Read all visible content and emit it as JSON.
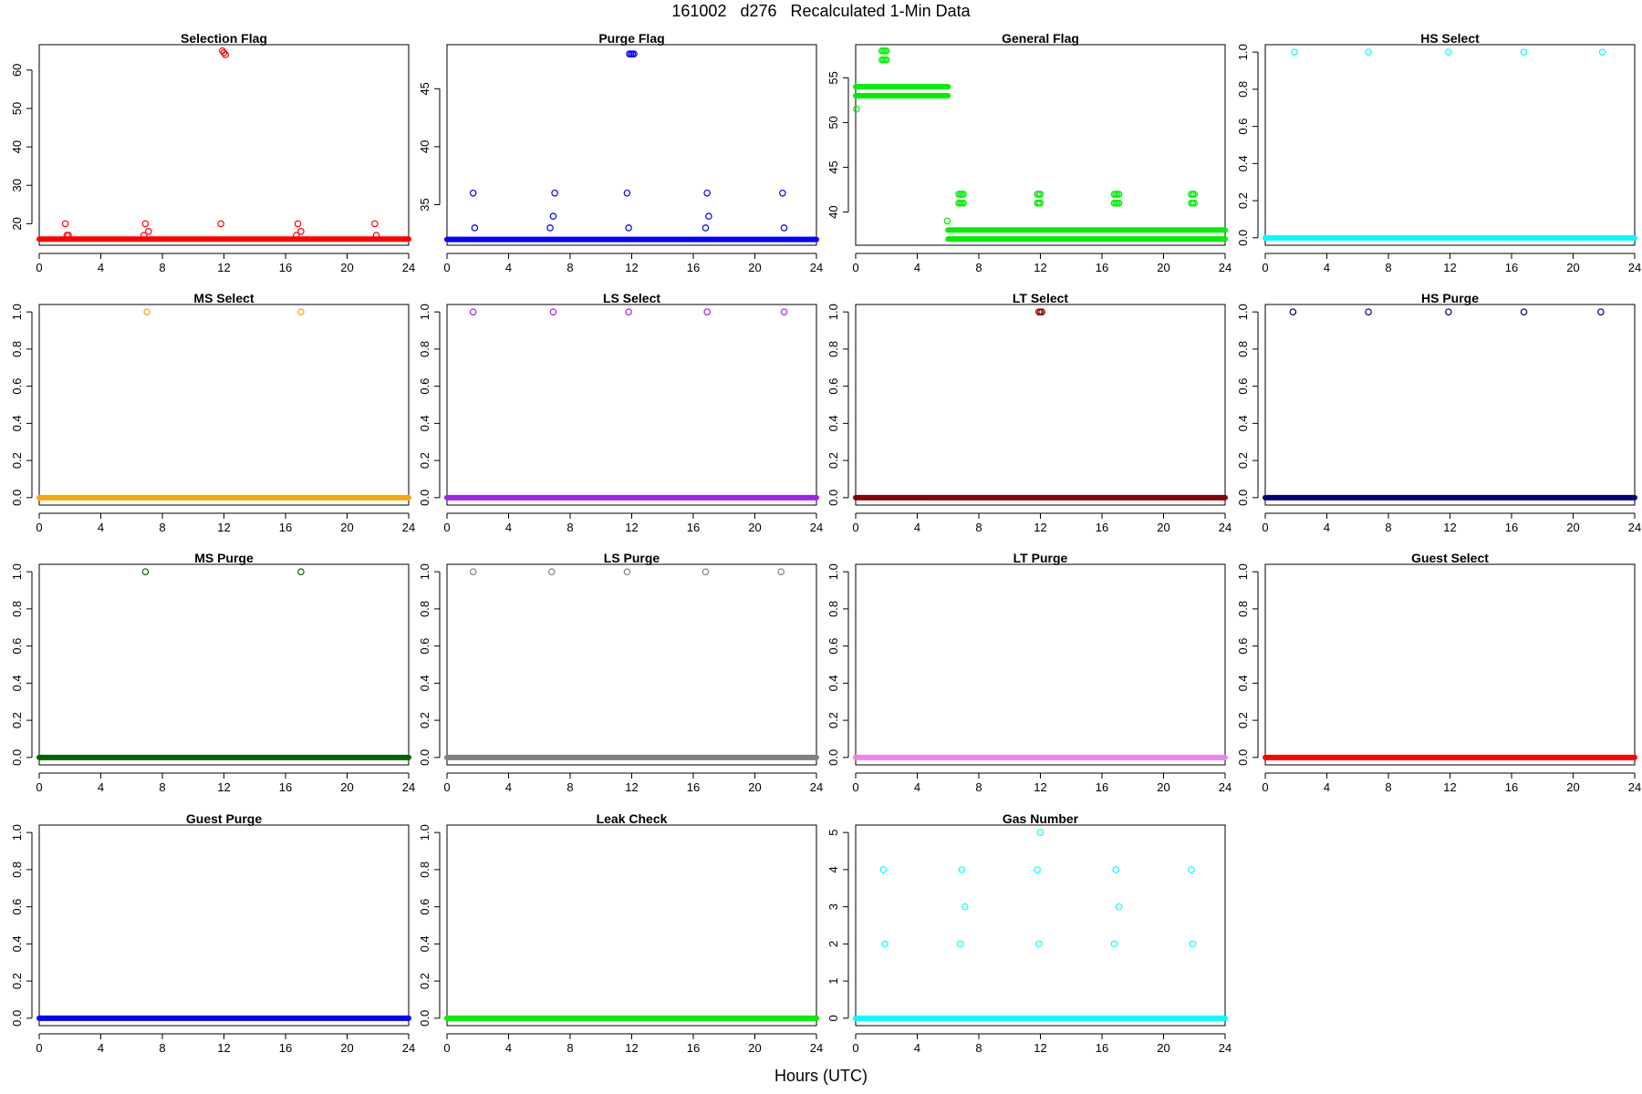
{
  "page_title": "161002   d276   Recalculated 1-Min Data",
  "x_axis_label": "Hours (UTC)",
  "chart_data": [
    {
      "type": "scatter",
      "title": "Selection Flag",
      "color": "#ff0000",
      "xlim": [
        0,
        24
      ],
      "ylim": [
        14.4,
        66.6
      ],
      "xticks": [
        0,
        4,
        8,
        12,
        16,
        20,
        24
      ],
      "yticks": [
        20,
        30,
        40,
        50,
        60
      ],
      "baseline": [
        {
          "y": 16,
          "x_start": 0,
          "x_end": 24
        }
      ],
      "points": [
        {
          "x": 1.7,
          "y": 20
        },
        {
          "x": 1.8,
          "y": 17
        },
        {
          "x": 1.9,
          "y": 17
        },
        {
          "x": 6.8,
          "y": 17
        },
        {
          "x": 6.9,
          "y": 20
        },
        {
          "x": 7.1,
          "y": 18
        },
        {
          "x": 11.8,
          "y": 20
        },
        {
          "x": 11.9,
          "y": 65
        },
        {
          "x": 12.0,
          "y": 64.5
        },
        {
          "x": 12.1,
          "y": 64
        },
        {
          "x": 16.7,
          "y": 17
        },
        {
          "x": 16.8,
          "y": 20
        },
        {
          "x": 17.0,
          "y": 18
        },
        {
          "x": 21.8,
          "y": 20
        },
        {
          "x": 21.9,
          "y": 17
        }
      ]
    },
    {
      "type": "scatter",
      "title": "Purge Flag",
      "color": "#0000ff",
      "xlim": [
        0,
        24
      ],
      "ylim": [
        31.5,
        48.8
      ],
      "xticks": [
        0,
        4,
        8,
        12,
        16,
        20,
        24
      ],
      "yticks": [
        35,
        40,
        45
      ],
      "baseline": [
        {
          "y": 32,
          "x_start": 0,
          "x_end": 24
        }
      ],
      "points": [
        {
          "x": 1.7,
          "y": 36
        },
        {
          "x": 1.8,
          "y": 33
        },
        {
          "x": 6.7,
          "y": 33
        },
        {
          "x": 6.9,
          "y": 34
        },
        {
          "x": 7.0,
          "y": 36
        },
        {
          "x": 11.7,
          "y": 36
        },
        {
          "x": 11.8,
          "y": 33
        },
        {
          "x": 11.85,
          "y": 48
        },
        {
          "x": 11.95,
          "y": 48
        },
        {
          "x": 12.05,
          "y": 48
        },
        {
          "x": 12.15,
          "y": 48
        },
        {
          "x": 16.8,
          "y": 33
        },
        {
          "x": 16.9,
          "y": 36
        },
        {
          "x": 17.0,
          "y": 34
        },
        {
          "x": 21.8,
          "y": 36
        },
        {
          "x": 21.9,
          "y": 33
        }
      ]
    },
    {
      "type": "scatter",
      "title": "General Flag",
      "color": "#00ee00",
      "xlim": [
        0,
        24
      ],
      "ylim": [
        36.3,
        58.7
      ],
      "xticks": [
        0,
        4,
        8,
        12,
        16,
        20,
        24
      ],
      "yticks": [
        40,
        45,
        50,
        55
      ],
      "baseline": [
        {
          "y": 54,
          "x_start": 0,
          "x_end": 6
        },
        {
          "y": 53,
          "x_start": 0,
          "x_end": 6
        },
        {
          "y": 38,
          "x_start": 6,
          "x_end": 24
        },
        {
          "y": 37,
          "x_start": 6,
          "x_end": 24
        }
      ],
      "points": [
        {
          "x": 0.05,
          "y": 51.5
        },
        {
          "x": 5.95,
          "y": 39
        },
        {
          "x": 1.7,
          "y": 58
        },
        {
          "x": 1.8,
          "y": 58
        },
        {
          "x": 1.9,
          "y": 58
        },
        {
          "x": 2.0,
          "y": 58
        },
        {
          "x": 1.7,
          "y": 57
        },
        {
          "x": 1.8,
          "y": 57
        },
        {
          "x": 1.9,
          "y": 57
        },
        {
          "x": 2.0,
          "y": 57
        },
        {
          "x": 6.7,
          "y": 42
        },
        {
          "x": 6.8,
          "y": 42
        },
        {
          "x": 6.9,
          "y": 42
        },
        {
          "x": 7.0,
          "y": 42
        },
        {
          "x": 6.7,
          "y": 41
        },
        {
          "x": 6.8,
          "y": 41
        },
        {
          "x": 6.9,
          "y": 41
        },
        {
          "x": 7.0,
          "y": 41
        },
        {
          "x": 11.8,
          "y": 42
        },
        {
          "x": 11.9,
          "y": 42
        },
        {
          "x": 12.0,
          "y": 42
        },
        {
          "x": 11.8,
          "y": 41
        },
        {
          "x": 11.9,
          "y": 41
        },
        {
          "x": 12.0,
          "y": 41
        },
        {
          "x": 16.8,
          "y": 42
        },
        {
          "x": 16.9,
          "y": 42
        },
        {
          "x": 17.0,
          "y": 42
        },
        {
          "x": 17.1,
          "y": 42
        },
        {
          "x": 16.8,
          "y": 41
        },
        {
          "x": 16.9,
          "y": 41
        },
        {
          "x": 17.0,
          "y": 41
        },
        {
          "x": 17.1,
          "y": 41
        },
        {
          "x": 21.8,
          "y": 42
        },
        {
          "x": 21.9,
          "y": 42
        },
        {
          "x": 22.0,
          "y": 42
        },
        {
          "x": 21.8,
          "y": 41
        },
        {
          "x": 21.9,
          "y": 41
        },
        {
          "x": 22.0,
          "y": 41
        }
      ]
    },
    {
      "type": "scatter",
      "title": "HS Select",
      "color": "#00ffff",
      "xlim": [
        0,
        24
      ],
      "ylim": [
        -0.04,
        1.04
      ],
      "xticks": [
        0,
        4,
        8,
        12,
        16,
        20,
        24
      ],
      "yticks": [
        0.0,
        0.2,
        0.4,
        0.6,
        0.8,
        1.0
      ],
      "baseline": [
        {
          "y": 0,
          "x_start": 0,
          "x_end": 24
        }
      ],
      "points": [
        {
          "x": 1.9,
          "y": 1
        },
        {
          "x": 6.7,
          "y": 1
        },
        {
          "x": 11.9,
          "y": 1
        },
        {
          "x": 16.8,
          "y": 1
        },
        {
          "x": 21.9,
          "y": 1
        }
      ]
    },
    {
      "type": "scatter",
      "title": "MS Select",
      "color": "#ffa500",
      "xlim": [
        0,
        24
      ],
      "ylim": [
        -0.04,
        1.04
      ],
      "xticks": [
        0,
        4,
        8,
        12,
        16,
        20,
        24
      ],
      "yticks": [
        0.0,
        0.2,
        0.4,
        0.6,
        0.8,
        1.0
      ],
      "baseline": [
        {
          "y": 0,
          "x_start": 0,
          "x_end": 24
        }
      ],
      "points": [
        {
          "x": 7.0,
          "y": 1
        },
        {
          "x": 17.0,
          "y": 1
        }
      ]
    },
    {
      "type": "scatter",
      "title": "LS Select",
      "color": "#a020f0",
      "xlim": [
        0,
        24
      ],
      "ylim": [
        -0.04,
        1.04
      ],
      "xticks": [
        0,
        4,
        8,
        12,
        16,
        20,
        24
      ],
      "yticks": [
        0.0,
        0.2,
        0.4,
        0.6,
        0.8,
        1.0
      ],
      "baseline": [
        {
          "y": 0,
          "x_start": 0,
          "x_end": 24
        }
      ],
      "points": [
        {
          "x": 1.7,
          "y": 1
        },
        {
          "x": 6.9,
          "y": 1
        },
        {
          "x": 11.8,
          "y": 1
        },
        {
          "x": 16.9,
          "y": 1
        },
        {
          "x": 21.9,
          "y": 1
        }
      ]
    },
    {
      "type": "scatter",
      "title": "LT Select",
      "color": "#8b0000",
      "xlim": [
        0,
        24
      ],
      "ylim": [
        -0.04,
        1.04
      ],
      "xticks": [
        0,
        4,
        8,
        12,
        16,
        20,
        24
      ],
      "yticks": [
        0.0,
        0.2,
        0.4,
        0.6,
        0.8,
        1.0
      ],
      "baseline": [
        {
          "y": 0,
          "x_start": 0,
          "x_end": 24
        }
      ],
      "points": [
        {
          "x": 11.9,
          "y": 1
        },
        {
          "x": 12.0,
          "y": 1
        },
        {
          "x": 12.1,
          "y": 1
        }
      ]
    },
    {
      "type": "scatter",
      "title": "HS Purge",
      "color": "#000080",
      "xlim": [
        0,
        24
      ],
      "ylim": [
        -0.04,
        1.04
      ],
      "xticks": [
        0,
        4,
        8,
        12,
        16,
        20,
        24
      ],
      "yticks": [
        0.0,
        0.2,
        0.4,
        0.6,
        0.8,
        1.0
      ],
      "baseline": [
        {
          "y": 0,
          "x_start": 0,
          "x_end": 24
        }
      ],
      "points": [
        {
          "x": 1.8,
          "y": 1
        },
        {
          "x": 6.7,
          "y": 1
        },
        {
          "x": 11.9,
          "y": 1
        },
        {
          "x": 16.8,
          "y": 1
        },
        {
          "x": 21.8,
          "y": 1
        }
      ]
    },
    {
      "type": "scatter",
      "title": "MS Purge",
      "color": "#006400",
      "xlim": [
        0,
        24
      ],
      "ylim": [
        -0.04,
        1.04
      ],
      "xticks": [
        0,
        4,
        8,
        12,
        16,
        20,
        24
      ],
      "yticks": [
        0.0,
        0.2,
        0.4,
        0.6,
        0.8,
        1.0
      ],
      "baseline": [
        {
          "y": 0,
          "x_start": 0,
          "x_end": 24
        }
      ],
      "points": [
        {
          "x": 6.9,
          "y": 1
        },
        {
          "x": 17.0,
          "y": 1
        }
      ]
    },
    {
      "type": "scatter",
      "title": "LS Purge",
      "color": "#808080",
      "xlim": [
        0,
        24
      ],
      "ylim": [
        -0.04,
        1.04
      ],
      "xticks": [
        0,
        4,
        8,
        12,
        16,
        20,
        24
      ],
      "yticks": [
        0.0,
        0.2,
        0.4,
        0.6,
        0.8,
        1.0
      ],
      "baseline": [
        {
          "y": 0,
          "x_start": 0,
          "x_end": 24
        }
      ],
      "points": [
        {
          "x": 1.7,
          "y": 1
        },
        {
          "x": 6.8,
          "y": 1
        },
        {
          "x": 11.7,
          "y": 1
        },
        {
          "x": 16.8,
          "y": 1
        },
        {
          "x": 21.7,
          "y": 1
        }
      ]
    },
    {
      "type": "scatter",
      "title": "LT Purge",
      "color": "#ee82ee",
      "xlim": [
        0,
        24
      ],
      "ylim": [
        -0.04,
        1.04
      ],
      "xticks": [
        0,
        4,
        8,
        12,
        16,
        20,
        24
      ],
      "yticks": [
        0.0,
        0.2,
        0.4,
        0.6,
        0.8,
        1.0
      ],
      "baseline": [
        {
          "y": 0,
          "x_start": 0,
          "x_end": 24
        }
      ],
      "points": []
    },
    {
      "type": "scatter",
      "title": "Guest Select",
      "color": "#ff0000",
      "xlim": [
        0,
        24
      ],
      "ylim": [
        -0.04,
        1.04
      ],
      "xticks": [
        0,
        4,
        8,
        12,
        16,
        20,
        24
      ],
      "yticks": [
        0.0,
        0.2,
        0.4,
        0.6,
        0.8,
        1.0
      ],
      "baseline": [
        {
          "y": 0,
          "x_start": 0,
          "x_end": 24
        }
      ],
      "points": []
    },
    {
      "type": "scatter",
      "title": "Guest Purge",
      "color": "#0000ff",
      "xlim": [
        0,
        24
      ],
      "ylim": [
        -0.04,
        1.04
      ],
      "xticks": [
        0,
        4,
        8,
        12,
        16,
        20,
        24
      ],
      "yticks": [
        0.0,
        0.2,
        0.4,
        0.6,
        0.8,
        1.0
      ],
      "baseline": [
        {
          "y": 0,
          "x_start": 0,
          "x_end": 24
        }
      ],
      "points": []
    },
    {
      "type": "scatter",
      "title": "Leak Check",
      "color": "#00ee00",
      "xlim": [
        0,
        24
      ],
      "ylim": [
        -0.04,
        1.04
      ],
      "xticks": [
        0,
        4,
        8,
        12,
        16,
        20,
        24
      ],
      "yticks": [
        0.0,
        0.2,
        0.4,
        0.6,
        0.8,
        1.0
      ],
      "baseline": [
        {
          "y": 0,
          "x_start": 0,
          "x_end": 24
        }
      ],
      "points": []
    },
    {
      "type": "scatter",
      "title": "Gas Number",
      "color": "#00ffff",
      "xlim": [
        0,
        24
      ],
      "ylim": [
        -0.2,
        5.2
      ],
      "xticks": [
        0,
        4,
        8,
        12,
        16,
        20,
        24
      ],
      "yticks": [
        0,
        1,
        2,
        3,
        4,
        5
      ],
      "baseline": [
        {
          "y": 0,
          "x_start": 0,
          "x_end": 24
        }
      ],
      "points": [
        {
          "x": 1.8,
          "y": 4
        },
        {
          "x": 1.9,
          "y": 2
        },
        {
          "x": 6.8,
          "y": 2
        },
        {
          "x": 6.9,
          "y": 4
        },
        {
          "x": 7.1,
          "y": 3
        },
        {
          "x": 11.8,
          "y": 4
        },
        {
          "x": 11.9,
          "y": 2
        },
        {
          "x": 12.0,
          "y": 5
        },
        {
          "x": 16.8,
          "y": 2
        },
        {
          "x": 16.9,
          "y": 4
        },
        {
          "x": 17.1,
          "y": 3
        },
        {
          "x": 21.8,
          "y": 4
        },
        {
          "x": 21.9,
          "y": 2
        }
      ]
    }
  ]
}
